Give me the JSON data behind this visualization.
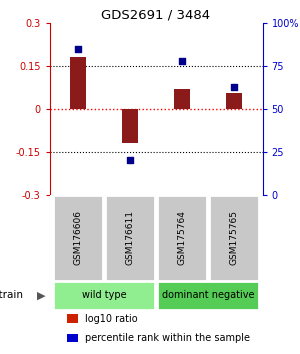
{
  "title": "GDS2691 / 3484",
  "samples": [
    "GSM176606",
    "GSM176611",
    "GSM175764",
    "GSM175765"
  ],
  "log10_ratio": [
    0.18,
    -0.12,
    0.07,
    0.055
  ],
  "percentile_rank": [
    85,
    20,
    78,
    63
  ],
  "ylim_left": [
    -0.3,
    0.3
  ],
  "ylim_right": [
    0,
    100
  ],
  "left_ticks": [
    -0.3,
    -0.15,
    0,
    0.15,
    0.3
  ],
  "right_ticks": [
    0,
    25,
    50,
    75,
    100
  ],
  "left_tick_labels": [
    "-0.3",
    "-0.15",
    "0",
    "0.15",
    "0.3"
  ],
  "right_tick_labels": [
    "0",
    "25",
    "50",
    "75",
    "100%"
  ],
  "hlines": [
    -0.15,
    0.0,
    0.15
  ],
  "hline_colors": [
    "black",
    "red",
    "black"
  ],
  "hline_styles": [
    "dotted",
    "dotted",
    "dotted"
  ],
  "bar_color": "#8B1A1A",
  "dot_color": "#00008B",
  "groups": [
    {
      "label": "wild type",
      "samples": [
        0,
        1
      ],
      "color": "#90EE90"
    },
    {
      "label": "dominant negative",
      "samples": [
        2,
        3
      ],
      "color": "#55CC55"
    }
  ],
  "strain_label": "strain",
  "legend_items": [
    {
      "color": "#CC2200",
      "label": "log10 ratio"
    },
    {
      "color": "#0000CC",
      "label": "percentile rank within the sample"
    }
  ],
  "left_axis_color": "#CC0000",
  "right_axis_color": "#0000CC",
  "sample_box_color": "#C8C8C8",
  "background_color": "white"
}
